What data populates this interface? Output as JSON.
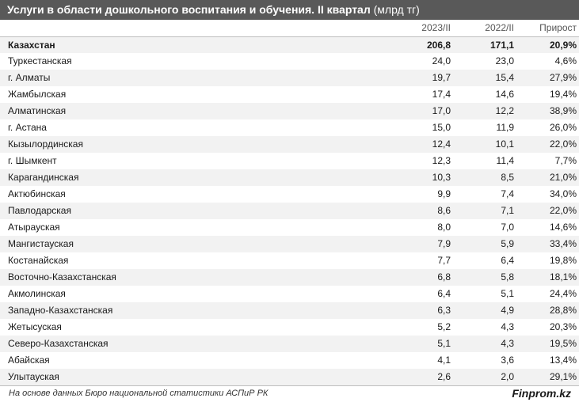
{
  "header": {
    "title": "Услуги в области дошкольного воспитания и обучения. II квартал",
    "unit": "(млрд тг)"
  },
  "columns": [
    "2023/II",
    "2022/II",
    "Прирост"
  ],
  "total": {
    "name": "Казахстан",
    "v2023": "206,8",
    "v2022": "171,1",
    "growth": "20,9%"
  },
  "chart_data": {
    "type": "table",
    "title": "Услуги в области дошкольного воспитания и обучения. II квартал (млрд тг)",
    "columns": [
      "",
      "2023/II",
      "2022/II",
      "Прирост"
    ],
    "rows": [
      {
        "name": "Туркестанская",
        "v2023": "24,0",
        "v2022": "23,0",
        "growth": "4,6%"
      },
      {
        "name": "г. Алматы",
        "v2023": "19,7",
        "v2022": "15,4",
        "growth": "27,9%"
      },
      {
        "name": "Жамбылская",
        "v2023": "17,4",
        "v2022": "14,6",
        "growth": "19,4%"
      },
      {
        "name": "Алматинская",
        "v2023": "17,0",
        "v2022": "12,2",
        "growth": "38,9%"
      },
      {
        "name": "г. Астана",
        "v2023": "15,0",
        "v2022": "11,9",
        "growth": "26,0%"
      },
      {
        "name": "Кызылординская",
        "v2023": "12,4",
        "v2022": "10,1",
        "growth": "22,0%"
      },
      {
        "name": "г. Шымкент",
        "v2023": "12,3",
        "v2022": "11,4",
        "growth": "7,7%"
      },
      {
        "name": "Карагандинская",
        "v2023": "10,3",
        "v2022": "8,5",
        "growth": "21,0%"
      },
      {
        "name": "Актюбинская",
        "v2023": "9,9",
        "v2022": "7,4",
        "growth": "34,0%"
      },
      {
        "name": "Павлодарская",
        "v2023": "8,6",
        "v2022": "7,1",
        "growth": "22,0%"
      },
      {
        "name": "Атырауская",
        "v2023": "8,0",
        "v2022": "7,0",
        "growth": "14,6%"
      },
      {
        "name": "Мангистауская",
        "v2023": "7,9",
        "v2022": "5,9",
        "growth": "33,4%"
      },
      {
        "name": "Костанайская",
        "v2023": "7,7",
        "v2022": "6,4",
        "growth": "19,8%"
      },
      {
        "name": "Восточно-Казахстанская",
        "v2023": "6,8",
        "v2022": "5,8",
        "growth": "18,1%"
      },
      {
        "name": "Акмолинская",
        "v2023": "6,4",
        "v2022": "5,1",
        "growth": "24,4%"
      },
      {
        "name": "Западно-Казахстанская",
        "v2023": "6,3",
        "v2022": "4,9",
        "growth": "28,8%"
      },
      {
        "name": "Жетысуская",
        "v2023": "5,2",
        "v2022": "4,3",
        "growth": "20,3%"
      },
      {
        "name": "Северо-Казахстанская",
        "v2023": "5,1",
        "v2022": "4,3",
        "growth": "19,5%"
      },
      {
        "name": "Абайская",
        "v2023": "4,1",
        "v2022": "3,6",
        "growth": "13,4%"
      },
      {
        "name": "Улытауская",
        "v2023": "2,6",
        "v2022": "2,0",
        "growth": "29,1%"
      }
    ]
  },
  "footer": {
    "source": "На основе данных Бюро национальной статистики АСПиР РК",
    "brand": "Finprom.kz"
  },
  "colors": {
    "title_bg": "#595959",
    "row_alt": "#f2f2f2"
  }
}
